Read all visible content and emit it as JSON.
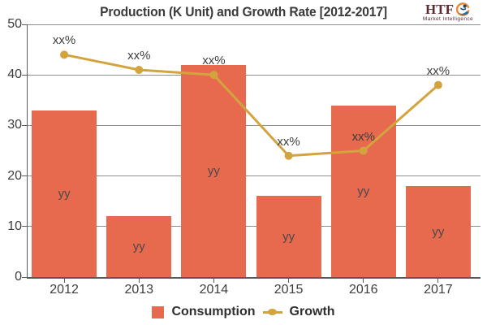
{
  "logo": {
    "brand": "HTF",
    "tagline": "Market Intelligence"
  },
  "colors": {
    "bar": "#E7694E",
    "line": "#D3A43E",
    "grid": "#8E8E8E",
    "axis": "#5A5A5A",
    "tick_text": "#3D3D3D",
    "bar_label_text": "#4A4A4A",
    "point_label_text": "#3D3D3D",
    "title_text": "#3A3A3A",
    "legend_text": "#2F2F2F",
    "logo_maroon": "#5C2B2F",
    "logo_orange": "#E8883B",
    "logo_blue": "#1E6FA8",
    "logo_dark_blue": "#134A73"
  },
  "chart_data": {
    "type": "bar",
    "subtype": "combo-bar-line",
    "title": "Production (K Unit) and Growth Rate [2012-2017]",
    "categories": [
      "2012",
      "2013",
      "2014",
      "2015",
      "2016",
      "2017"
    ],
    "series": [
      {
        "name": "Consumption",
        "mark": "bar",
        "values": [
          33,
          12,
          42,
          16,
          34,
          18
        ],
        "data_labels": [
          "yy",
          "yy",
          "yy",
          "yy",
          "yy",
          "yy"
        ]
      },
      {
        "name": "Growth",
        "mark": "line",
        "values": [
          44,
          41,
          40,
          24,
          25,
          38
        ],
        "data_labels": [
          "xx%",
          "xx%",
          "xx%",
          "xx%",
          "xx%",
          "xx%"
        ]
      }
    ],
    "xlabel": "",
    "ylabel": "",
    "ylim": [
      0,
      50
    ],
    "yticks": [
      0,
      10,
      20,
      30,
      40,
      50
    ],
    "grid": true,
    "legend_position": "bottom"
  }
}
